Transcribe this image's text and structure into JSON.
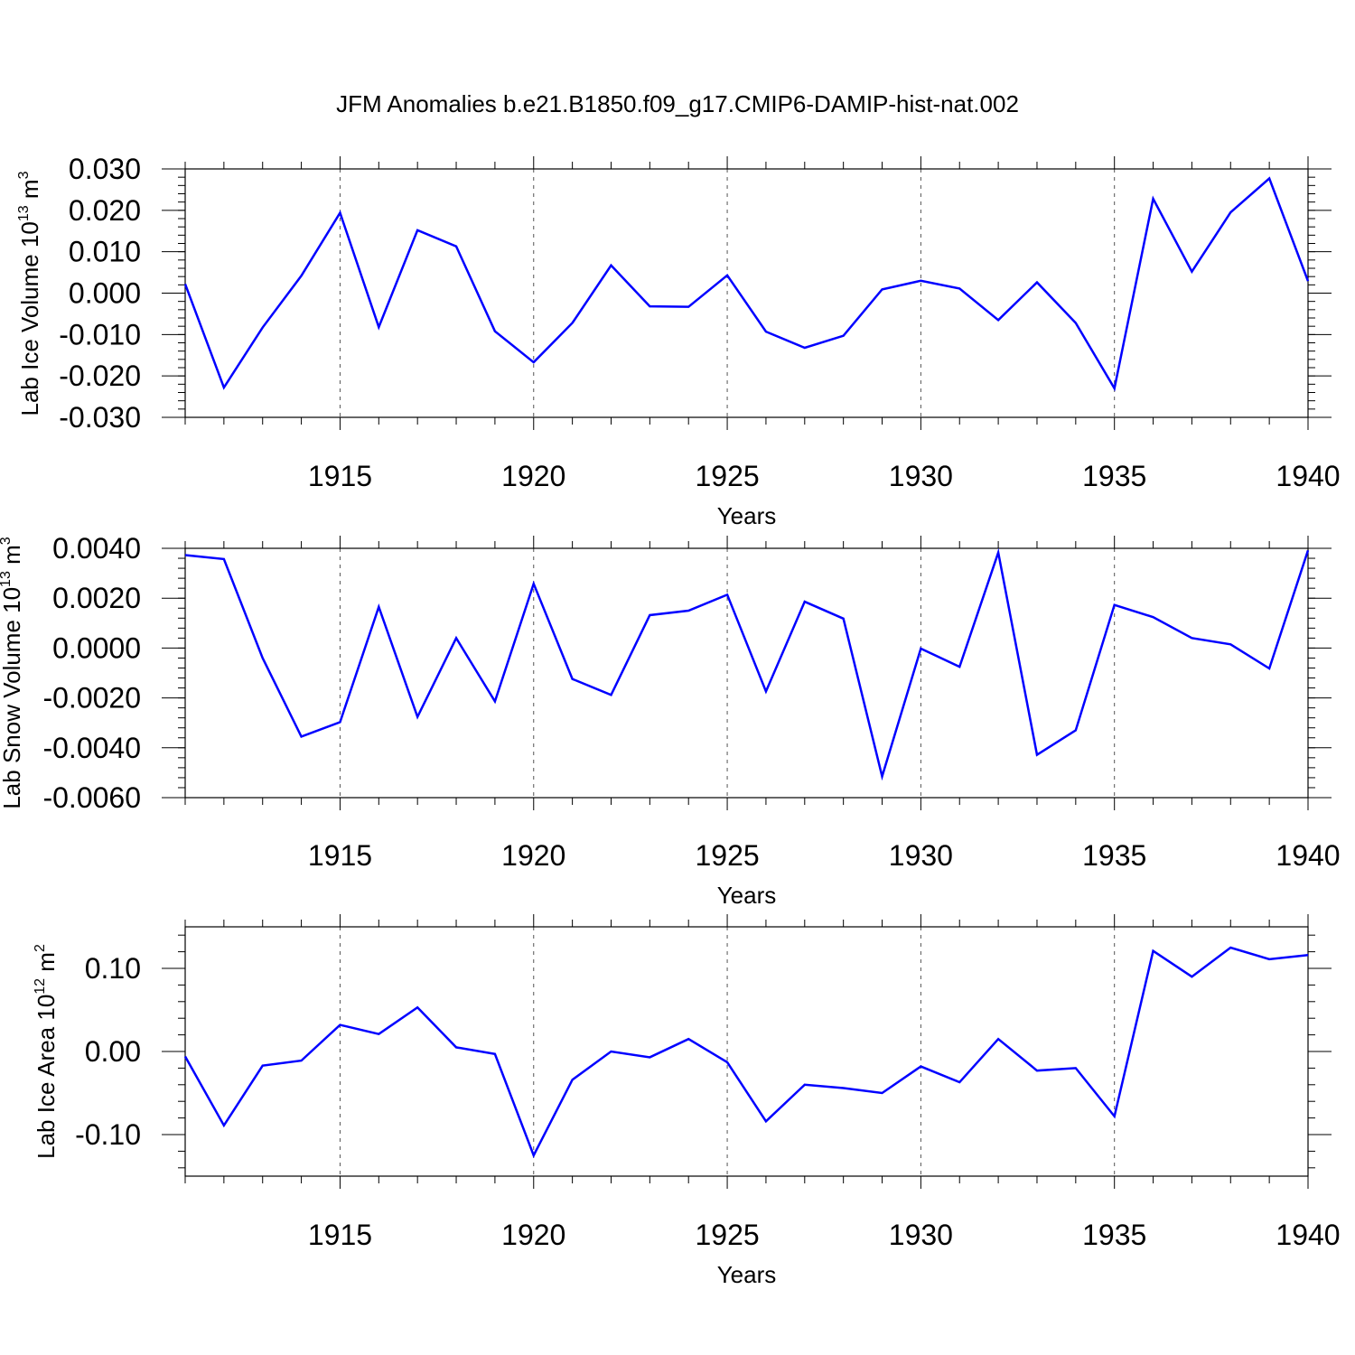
{
  "figure_title": "JFM Anomalies b.e21.B1850.f09_g17.CMIP6-DAMIP-hist-nat.002",
  "colors": {
    "line": "#0000ff",
    "axis": "#000000",
    "grid": "#000000",
    "background": "#ffffff"
  },
  "chart_data": [
    {
      "type": "line",
      "title": "JFM Anomalies b.e21.B1850.f09_g17.CMIP6-DAMIP-hist-nat.002",
      "ylabel_main": "Lab Ice Volume 10",
      "ylabel_exp": "13",
      "ylabel_unit": " m",
      "ylabel_unit_exp": "3",
      "xlabel": "Years",
      "xlim": [
        1911,
        1940
      ],
      "ylim": [
        -0.03,
        0.03
      ],
      "yticks": [
        0.03,
        0.02,
        0.01,
        0.0,
        -0.01,
        -0.02,
        -0.03
      ],
      "ytick_labels": [
        "0.030",
        "0.020",
        "0.010",
        "0.000",
        "-0.010",
        "-0.020",
        "-0.030"
      ],
      "xticks": [
        1915,
        1920,
        1925,
        1930,
        1935,
        1940
      ],
      "xtick_labels": [
        "1915",
        "1920",
        "1925",
        "1930",
        "1935",
        "1940"
      ],
      "grid": "vertical dashed at major x ticks",
      "series": [
        {
          "name": "Lab Ice Volume",
          "x": [
            1911,
            1912,
            1913,
            1914,
            1915,
            1916,
            1917,
            1918,
            1919,
            1920,
            1921,
            1922,
            1923,
            1924,
            1925,
            1926,
            1927,
            1928,
            1929,
            1930,
            1931,
            1932,
            1933,
            1934,
            1935,
            1936,
            1937,
            1938,
            1939,
            1940
          ],
          "values": [
            0.0022,
            -0.0228,
            -0.0083,
            0.0042,
            0.0194,
            -0.0082,
            0.0152,
            0.0113,
            -0.0092,
            -0.0167,
            -0.0072,
            0.0067,
            -0.0032,
            -0.0033,
            0.0043,
            -0.0093,
            -0.0132,
            -0.0103,
            0.0009,
            0.003,
            0.0011,
            -0.0065,
            0.0026,
            -0.0072,
            -0.023,
            0.0228,
            0.0052,
            0.0195,
            0.0277,
            0.0029
          ]
        }
      ]
    },
    {
      "type": "line",
      "ylabel_main": "Lab Snow Volume 10",
      "ylabel_exp": "13",
      "ylabel_unit": " m",
      "ylabel_unit_exp": "3",
      "xlabel": "Years",
      "xlim": [
        1911,
        1940
      ],
      "ylim": [
        -0.006,
        0.004
      ],
      "yticks": [
        0.004,
        0.002,
        0.0,
        -0.002,
        -0.004,
        -0.006
      ],
      "ytick_labels": [
        "0.0040",
        "0.0020",
        "0.0000",
        "-0.0020",
        "-0.0040",
        "-0.0060"
      ],
      "xticks": [
        1915,
        1920,
        1925,
        1930,
        1935,
        1940
      ],
      "xtick_labels": [
        "1915",
        "1920",
        "1925",
        "1930",
        "1935",
        "1940"
      ],
      "grid": "vertical dashed at major x ticks",
      "series": [
        {
          "name": "Lab Snow Volume",
          "x": [
            1911,
            1912,
            1913,
            1914,
            1915,
            1916,
            1917,
            1918,
            1919,
            1920,
            1921,
            1922,
            1923,
            1924,
            1925,
            1926,
            1927,
            1928,
            1929,
            1930,
            1931,
            1932,
            1933,
            1934,
            1935,
            1936,
            1937,
            1938,
            1939,
            1940
          ],
          "values": [
            0.00373,
            0.00357,
            -0.0004,
            -0.00355,
            -0.00297,
            0.00165,
            -0.00276,
            0.0004,
            -0.00214,
            0.00258,
            -0.00124,
            -0.00188,
            0.00132,
            0.0015,
            0.00214,
            -0.00174,
            0.00186,
            0.00118,
            -0.00515,
            -2e-05,
            -0.00075,
            0.00383,
            -0.00428,
            -0.0033,
            0.00173,
            0.00124,
            0.0004,
            0.00015,
            -0.00082,
            0.00392
          ]
        }
      ]
    },
    {
      "type": "line",
      "ylabel_main": "Lab Ice Area 10",
      "ylabel_exp": "12",
      "ylabel_unit": " m",
      "ylabel_unit_exp": "2",
      "xlabel": "Years",
      "xlim": [
        1911,
        1940
      ],
      "ylim": [
        -0.15,
        0.15
      ],
      "yticks": [
        0.1,
        0.0,
        -0.1
      ],
      "ytick_labels": [
        "0.10",
        "0.00",
        "-0.10"
      ],
      "xticks": [
        1915,
        1920,
        1925,
        1930,
        1935,
        1940
      ],
      "xtick_labels": [
        "1915",
        "1920",
        "1925",
        "1930",
        "1935",
        "1940"
      ],
      "grid": "vertical dashed at major x ticks",
      "series": [
        {
          "name": "Lab Ice Area",
          "x": [
            1911,
            1912,
            1913,
            1914,
            1915,
            1916,
            1917,
            1918,
            1919,
            1920,
            1921,
            1922,
            1923,
            1924,
            1925,
            1926,
            1927,
            1928,
            1929,
            1930,
            1931,
            1932,
            1933,
            1934,
            1935,
            1936,
            1937,
            1938,
            1939,
            1940
          ],
          "values": [
            -0.006,
            -0.089,
            -0.017,
            -0.011,
            0.032,
            0.021,
            0.053,
            0.005,
            -0.003,
            -0.125,
            -0.034,
            0.0,
            -0.007,
            0.015,
            -0.013,
            -0.084,
            -0.04,
            -0.044,
            -0.05,
            -0.018,
            -0.037,
            0.015,
            -0.023,
            -0.02,
            -0.078,
            0.121,
            0.09,
            0.125,
            0.111,
            0.116
          ]
        }
      ]
    }
  ]
}
